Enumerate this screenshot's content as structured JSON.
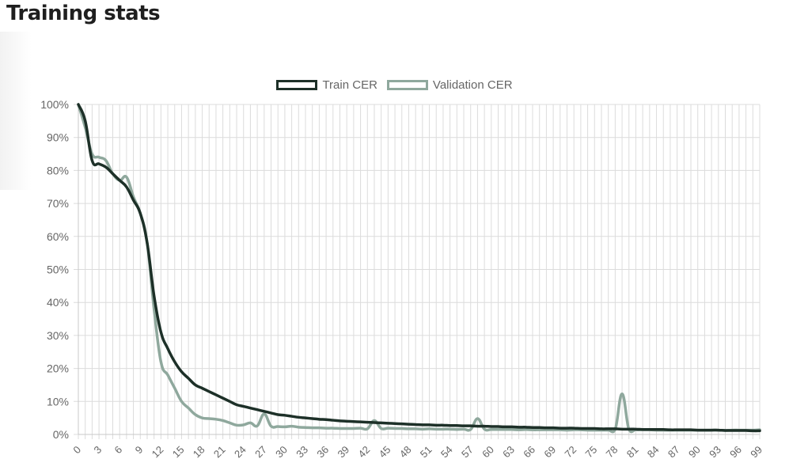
{
  "page": {
    "title": "Training stats"
  },
  "chart_data": {
    "type": "line",
    "title": "",
    "xlabel": "",
    "ylabel": "",
    "xlim": [
      0,
      99
    ],
    "ylim": [
      0,
      100
    ],
    "y_tick_format": "{v}%",
    "y_ticks": [
      0,
      10,
      20,
      30,
      40,
      50,
      60,
      70,
      80,
      90,
      100
    ],
    "x_tick_labels": [
      "0",
      "3",
      "6",
      "9",
      "12",
      "15",
      "18",
      "21",
      "24",
      "27",
      "30",
      "33",
      "36",
      "39",
      "42",
      "45",
      "48",
      "51",
      "54",
      "57",
      "60",
      "63",
      "66",
      "69",
      "72",
      "75",
      "78",
      "81",
      "84",
      "87",
      "90",
      "93",
      "96",
      "99"
    ],
    "grid": true,
    "legend_position": "top-center",
    "series": [
      {
        "name": "Train CER",
        "color": "#1d3028",
        "x": [
          0,
          1,
          2,
          3,
          4,
          5,
          6,
          7,
          8,
          9,
          10,
          11,
          12,
          13,
          14,
          15,
          16,
          17,
          18,
          19,
          20,
          21,
          22,
          23,
          24,
          25,
          26,
          27,
          28,
          29,
          30,
          31,
          32,
          33,
          34,
          35,
          36,
          37,
          38,
          39,
          40,
          41,
          42,
          43,
          44,
          45,
          46,
          47,
          48,
          49,
          50,
          51,
          52,
          53,
          54,
          55,
          56,
          57,
          58,
          59,
          60,
          61,
          62,
          63,
          64,
          65,
          66,
          67,
          68,
          69,
          70,
          71,
          72,
          73,
          74,
          75,
          76,
          77,
          78,
          79,
          80,
          81,
          82,
          83,
          84,
          85,
          86,
          87,
          88,
          89,
          90,
          91,
          92,
          93,
          94,
          95,
          96,
          97,
          98,
          99
        ],
        "values": [
          100,
          95,
          83,
          82,
          81,
          79,
          77,
          75,
          71,
          67,
          58,
          42,
          31,
          26,
          22,
          19,
          17,
          15,
          14,
          13,
          12,
          11,
          10,
          9,
          8.5,
          8,
          7.5,
          7,
          6.5,
          6,
          5.8,
          5.5,
          5.2,
          5,
          4.8,
          4.6,
          4.5,
          4.3,
          4.1,
          4,
          3.9,
          3.8,
          3.7,
          3.6,
          3.5,
          3.4,
          3.3,
          3.2,
          3.1,
          3,
          2.9,
          2.9,
          2.8,
          2.8,
          2.7,
          2.7,
          2.6,
          2.6,
          2.5,
          2.5,
          2.4,
          2.4,
          2.3,
          2.3,
          2.2,
          2.2,
          2.1,
          2.1,
          2,
          2,
          1.9,
          1.9,
          1.9,
          1.8,
          1.8,
          1.8,
          1.7,
          1.7,
          1.7,
          1.6,
          1.6,
          1.6,
          1.5,
          1.5,
          1.5,
          1.5,
          1.4,
          1.4,
          1.4,
          1.4,
          1.3,
          1.3,
          1.3,
          1.3,
          1.2,
          1.2,
          1.2,
          1.2,
          1.1,
          1.1
        ]
      },
      {
        "name": "Validation CER",
        "color": "#8fa89d",
        "x": [
          0,
          1,
          2,
          3,
          4,
          5,
          6,
          7,
          8,
          9,
          10,
          11,
          12,
          13,
          14,
          15,
          16,
          17,
          18,
          19,
          20,
          21,
          22,
          23,
          24,
          25,
          26,
          27,
          28,
          29,
          30,
          31,
          32,
          33,
          34,
          35,
          36,
          37,
          38,
          39,
          40,
          41,
          42,
          43,
          44,
          45,
          46,
          47,
          48,
          49,
          50,
          51,
          52,
          53,
          54,
          55,
          56,
          57,
          58,
          59,
          60,
          61,
          62,
          63,
          64,
          65,
          66,
          67,
          68,
          69,
          70,
          71,
          72,
          73,
          74,
          75,
          76,
          77,
          78,
          79,
          80,
          81,
          82,
          83,
          84,
          85,
          86,
          87,
          88,
          89,
          90,
          91,
          92,
          93,
          94,
          95,
          96,
          97,
          98,
          99
        ],
        "values": [
          100,
          93,
          85,
          84,
          83,
          79,
          77,
          78,
          72,
          67,
          58,
          38,
          22,
          18,
          14,
          10,
          8,
          6,
          5,
          4.8,
          4.6,
          4.2,
          3.5,
          2.8,
          2.9,
          3.5,
          2.6,
          6.2,
          2.5,
          2.4,
          2.3,
          2.5,
          2.2,
          2.1,
          2,
          2,
          1.9,
          1.9,
          1.8,
          1.8,
          1.8,
          1.9,
          1.7,
          4.2,
          1.8,
          1.9,
          1.8,
          1.8,
          1.7,
          1.7,
          1.6,
          1.7,
          1.6,
          1.6,
          1.6,
          1.5,
          1.6,
          1.5,
          4.8,
          1.6,
          1.5,
          1.5,
          1.5,
          1.5,
          1.4,
          1.5,
          1.4,
          1.4,
          1.4,
          1.4,
          1.4,
          1.3,
          1.4,
          1.4,
          1.3,
          1.3,
          1.3,
          1.3,
          1.5,
          12.3,
          1.5,
          1.4,
          1.4,
          1.4,
          1.3,
          1.3,
          1.3,
          1.3,
          1.3,
          1.3,
          1.3,
          1.3,
          1.3,
          1.3,
          1.2,
          1.3,
          1.3,
          1.3,
          1.3,
          1.4
        ]
      }
    ]
  }
}
